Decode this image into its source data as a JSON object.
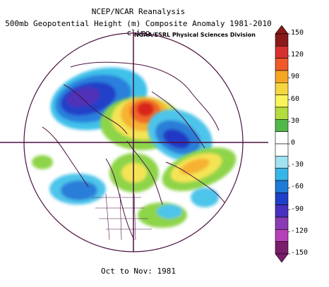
{
  "header": {
    "title_line1": "NCEP/NCAR Reanalysis",
    "title_line2": "500mb Geopotential Height (m) Composite Anomaly 1981-2010 climo",
    "credit": "NOAA/ESRL Physical Sciences Division"
  },
  "footer": {
    "period": "Oct to Nov: 1981"
  },
  "colorbar": {
    "tick_labels": [
      "150",
      "120",
      "90",
      "60",
      "30",
      "0",
      "-30",
      "-60",
      "-90",
      "-120",
      "-150"
    ],
    "colors": [
      "#8a1a1a",
      "#d73030",
      "#f05a28",
      "#f6a623",
      "#f6d640",
      "#f9f45a",
      "#b4dc3c",
      "#52b84a",
      "#ffffff",
      "#ffffff",
      "#a0e2f2",
      "#36b6e6",
      "#1e7bd6",
      "#1f3fc8",
      "#4830c0",
      "#8a3bb4",
      "#b640b8",
      "#7a1e6a"
    ]
  },
  "map": {
    "projection": "north-polar-stereographic",
    "anomaly_features": [
      {
        "name": "alaska-beaufort-low",
        "sign": "negative",
        "color": "#3a2ab8"
      },
      {
        "name": "arctic-high",
        "sign": "positive",
        "color": "#d82a1e"
      },
      {
        "name": "western-europe-low",
        "sign": "negative",
        "color": "#2a60d0"
      },
      {
        "name": "north-atlantic-high",
        "sign": "positive",
        "color": "#f6c43a"
      },
      {
        "name": "central-pacific-low",
        "sign": "negative",
        "color": "#2a7ed8"
      },
      {
        "name": "north-america-high",
        "sign": "positive",
        "color": "#8fd24a"
      }
    ]
  }
}
